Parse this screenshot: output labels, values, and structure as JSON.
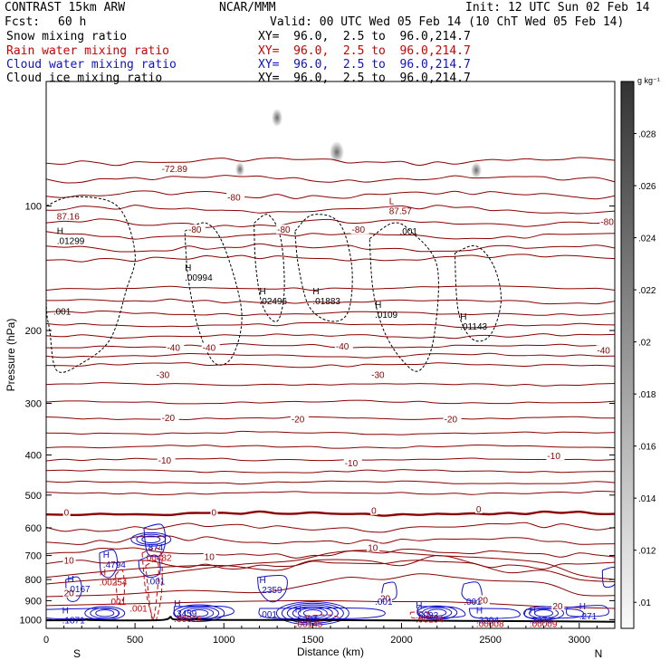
{
  "header": {
    "model": "CONTRAST 15km ARW",
    "org": "NCAR/MMM",
    "init": "Init: 12 UTC Sun 02 Feb 14",
    "fcst_label": "Fcst:",
    "fcst_value": "60 h",
    "valid": "Valid: 00 UTC Wed 05 Feb 14 (10 ChT Wed 05 Feb 14)",
    "fields": [
      {
        "name": "Snow mixing ratio",
        "xy": "XY=  96.0,  2.5 to  96.0,214.7",
        "color": "#000000"
      },
      {
        "name": "Rain water mixing ratio",
        "xy": "XY=  96.0,  2.5 to  96.0,214.7",
        "color": "#d00000"
      },
      {
        "name": "Cloud water mixing ratio",
        "xy": "XY=  96.0,  2.5 to  96.0,214.7",
        "color": "#1010d0"
      },
      {
        "name": "Cloud ice mixing ratio",
        "xy": "XY=  96.0,  2.5 to  96.0,214.7",
        "color": "#000000"
      }
    ]
  },
  "colors": {
    "temperature": "#8b0000",
    "rain": "#d00000",
    "cloud_water": "#1010d0",
    "cloud_ice": "#000000",
    "terrain": "#000000"
  },
  "chart_data": {
    "type": "cross-section",
    "xlabel": "Distance (km)",
    "ylabel": "Pressure (hPa)",
    "xlim": [
      0,
      3200
    ],
    "ylim": [
      1050,
      50
    ],
    "y_log": true,
    "xticks": [
      0,
      500,
      1000,
      1500,
      2000,
      2500,
      3000
    ],
    "yticks": [
      100,
      200,
      300,
      400,
      500,
      600,
      700,
      800,
      900,
      1000
    ],
    "endpoints": {
      "left": "S",
      "right": "N"
    },
    "colorbar": {
      "unit": "g kg⁻¹",
      "ticks": [
        ".01",
        ".012",
        ".014",
        ".016",
        ".018",
        ".02",
        ".022",
        ".024",
        ".026",
        ".028"
      ],
      "range": [
        0.009,
        0.03
      ]
    },
    "temperature_contours": [
      {
        "label": "-72.89",
        "p": 80
      },
      {
        "label": "-80",
        "p": 95
      },
      {
        "label": "-80",
        "p": 115
      },
      {
        "label": "-40",
        "p": 210
      },
      {
        "label": "-30",
        "p": 250
      },
      {
        "label": "-20",
        "p": 300
      },
      {
        "label": "-10",
        "p": 370
      },
      {
        "label": "0",
        "p": 555
      },
      {
        "label": "10",
        "p": 690
      },
      {
        "label": "20",
        "p": 895
      }
    ],
    "contour_labels": [
      {
        "text": "-72.89",
        "x": 650,
        "p": 82
      },
      {
        "text": "-80",
        "x": 1020,
        "p": 96
      },
      {
        "text": "-80",
        "x": 800,
        "p": 115
      },
      {
        "text": "-80",
        "x": 1300,
        "p": 115
      },
      {
        "text": "-80",
        "x": 1720,
        "p": 115
      },
      {
        "text": "-80",
        "x": 3120,
        "p": 110
      },
      {
        "text": "-40",
        "x": 680,
        "p": 222
      },
      {
        "text": "-40",
        "x": 880,
        "p": 222
      },
      {
        "text": "-40",
        "x": 1630,
        "p": 220
      },
      {
        "text": "-40",
        "x": 3100,
        "p": 225
      },
      {
        "text": "-30",
        "x": 620,
        "p": 258
      },
      {
        "text": "-30",
        "x": 1830,
        "p": 258
      },
      {
        "text": "-20",
        "x": 650,
        "p": 328
      },
      {
        "text": "-20",
        "x": 1380,
        "p": 330
      },
      {
        "text": "-20",
        "x": 2240,
        "p": 330
      },
      {
        "text": "-10",
        "x": 630,
        "p": 415
      },
      {
        "text": "-10",
        "x": 1680,
        "p": 422
      },
      {
        "text": "-10",
        "x": 2820,
        "p": 405
      },
      {
        "text": "0",
        "x": 100,
        "p": 555
      },
      {
        "text": "0",
        "x": 930,
        "p": 555
      },
      {
        "text": "0",
        "x": 1830,
        "p": 550
      },
      {
        "text": "0",
        "x": 2420,
        "p": 545
      },
      {
        "text": "10",
        "x": 100,
        "p": 725
      },
      {
        "text": "10",
        "x": 890,
        "p": 710
      },
      {
        "text": "10",
        "x": 1810,
        "p": 675
      },
      {
        "text": "20",
        "x": 100,
        "p": 870
      },
      {
        "text": "20",
        "x": 1880,
        "p": 895
      },
      {
        "text": "20",
        "x": 2430,
        "p": 905
      },
      {
        "text": "20",
        "x": 2850,
        "p": 935
      }
    ],
    "maxima_labels": [
      {
        "marker": "H",
        "value": ".01299",
        "x": 60,
        "p": 118,
        "color": "#000000"
      },
      {
        "marker": "",
        "value": "87.16",
        "x": 60,
        "p": 103,
        "color": "#8b0000"
      },
      {
        "marker": "",
        "value": ".001",
        "x": 40,
        "p": 175,
        "color": "#000000"
      },
      {
        "marker": "H",
        "value": ".00994",
        "x": 780,
        "p": 145,
        "color": "#000000"
      },
      {
        "marker": "H",
        "value": ".02496",
        "x": 1200,
        "p": 165,
        "color": "#000000"
      },
      {
        "marker": "H",
        "value": ".01883",
        "x": 1500,
        "p": 165,
        "color": "#000000"
      },
      {
        "marker": "H",
        "value": ".0109",
        "x": 1850,
        "p": 178,
        "color": "#000000"
      },
      {
        "marker": "H",
        "value": ".01143",
        "x": 2330,
        "p": 190,
        "color": "#000000"
      },
      {
        "marker": "L",
        "value": "87.57",
        "x": 1930,
        "p": 100,
        "color": "#8b0000"
      },
      {
        "marker": "",
        "value": ".001",
        "x": 1990,
        "p": 112,
        "color": "#000000"
      },
      {
        "marker": "H",
        "value": ".4794",
        "x": 320,
        "p": 715,
        "color": "#1010d0"
      },
      {
        "marker": "H",
        "value": ".00254",
        "x": 300,
        "p": 790,
        "color": "#d00000"
      },
      {
        "marker": "H",
        "value": ".0167",
        "x": 120,
        "p": 820,
        "color": "#1010d0"
      },
      {
        "marker": "",
        "value": ".001",
        "x": 350,
        "p": 880,
        "color": "#d00000"
      },
      {
        "marker": "",
        "value": ".874",
        "x": 560,
        "p": 650,
        "color": "#1010d0"
      },
      {
        "marker": "",
        "value": ".00482",
        "x": 550,
        "p": 690,
        "color": "#d00000"
      },
      {
        "marker": "",
        "value": ".001",
        "x": 570,
        "p": 785,
        "color": "#1010d0"
      },
      {
        "marker": "",
        "value": ".001",
        "x": 470,
        "p": 915,
        "color": "#d00000"
      },
      {
        "marker": "H",
        "value": ".1871",
        "x": 90,
        "p": 975,
        "color": "#1010d0"
      },
      {
        "marker": "H",
        "value": ".3459",
        "x": 720,
        "p": 940,
        "color": "#1010d0"
      },
      {
        "marker": "",
        "value": ".00016",
        "x": 720,
        "p": 968,
        "color": "#d00000"
      },
      {
        "marker": "H",
        "value": ".2359",
        "x": 1200,
        "p": 825,
        "color": "#1010d0"
      },
      {
        "marker": "",
        "value": ".001",
        "x": 1200,
        "p": 945,
        "color": "#1010d0"
      },
      {
        "marker": "H",
        "value": ".5284",
        "x": 1400,
        "p": 970,
        "color": "#1010d0"
      },
      {
        "marker": "",
        "value": ".00145",
        "x": 1400,
        "p": 995,
        "color": "#d00000"
      },
      {
        "marker": "",
        "value": ".001",
        "x": 1850,
        "p": 880,
        "color": "#1010d0"
      },
      {
        "marker": "",
        "value": ".001",
        "x": 2350,
        "p": 880,
        "color": "#1010d0"
      },
      {
        "marker": "H",
        "value": ".6093",
        "x": 2080,
        "p": 950,
        "color": "#1010d0"
      },
      {
        "marker": "",
        "value": ".00134",
        "x": 2080,
        "p": 972,
        "color": "#d00000"
      },
      {
        "marker": "H",
        "value": ".3294",
        "x": 2420,
        "p": 975,
        "color": "#1010d0"
      },
      {
        "marker": "",
        "value": ".00008",
        "x": 2420,
        "p": 995,
        "color": "#d00000"
      },
      {
        "marker": "H",
        "value": ".3373",
        "x": 2720,
        "p": 975,
        "color": "#1010d0"
      },
      {
        "marker": "",
        "value": ".00009",
        "x": 2720,
        "p": 995,
        "color": "#d00000"
      },
      {
        "marker": "H",
        "value": ".271",
        "x": 3000,
        "p": 955,
        "color": "#1010d0"
      }
    ]
  }
}
